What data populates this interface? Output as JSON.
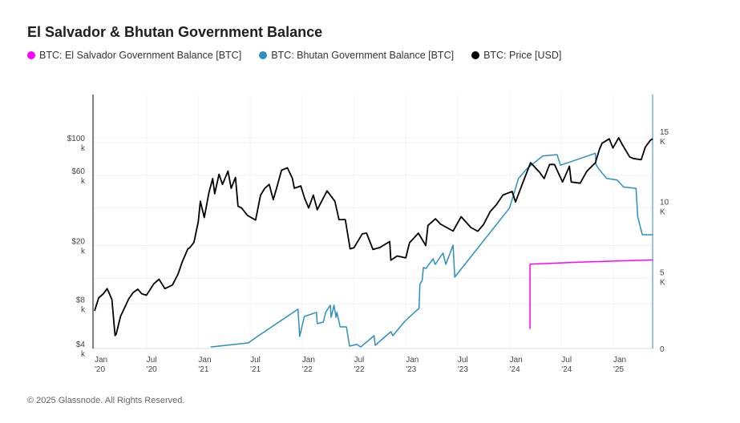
{
  "title": "El Salvador & Bhutan Government Balance",
  "footer": "© 2025 Glassnode. All Rights Reserved.",
  "chart_data": {
    "type": "line",
    "title": "El Salvador & Bhutan Government Balance",
    "legend_position": "top-left",
    "grid": true,
    "x_ticks": [
      {
        "date": "2020-01-01",
        "label": [
          "Jan",
          "'20"
        ]
      },
      {
        "date": "2020-07-01",
        "label": [
          "Jul",
          "'20"
        ]
      },
      {
        "date": "2021-01-01",
        "label": [
          "Jan",
          "'21"
        ]
      },
      {
        "date": "2021-07-01",
        "label": [
          "Jul",
          "'21"
        ]
      },
      {
        "date": "2022-01-01",
        "label": [
          "Jan",
          "'22"
        ]
      },
      {
        "date": "2022-07-01",
        "label": [
          "Jul",
          "'22"
        ]
      },
      {
        "date": "2023-01-01",
        "label": [
          "Jan",
          "'23"
        ]
      },
      {
        "date": "2023-07-01",
        "label": [
          "Jul",
          "'23"
        ]
      },
      {
        "date": "2024-01-01",
        "label": [
          "Jan",
          "'24"
        ]
      },
      {
        "date": "2024-07-01",
        "label": [
          "Jul",
          "'24"
        ]
      },
      {
        "date": "2025-01-01",
        "label": [
          "Jan",
          "'25"
        ]
      }
    ],
    "left_axis": {
      "scale": "log",
      "range": [
        4000,
        160000
      ],
      "ticks": [
        {
          "value": 4000,
          "label": [
            "$4",
            "k"
          ]
        },
        {
          "value": 8000,
          "label": [
            "$8",
            "k"
          ]
        },
        {
          "value": 20000,
          "label": [
            "$20",
            "k"
          ]
        },
        {
          "value": 60000,
          "label": [
            "$60",
            "k"
          ]
        },
        {
          "value": 100000,
          "label": [
            "$100",
            "k"
          ]
        }
      ]
    },
    "right_axis": {
      "scale": "linear",
      "range": [
        0,
        18000
      ],
      "ticks": [
        {
          "value": 0,
          "label": [
            "0"
          ]
        },
        {
          "value": 5000,
          "label": [
            "5",
            "K"
          ]
        },
        {
          "value": 10000,
          "label": [
            "10",
            "K"
          ]
        },
        {
          "value": 15000,
          "label": [
            "15",
            "K"
          ]
        }
      ]
    },
    "series": [
      {
        "name": "BTC: El Salvador Government Balance [BTC]",
        "color": "#ff00ff",
        "axis": "right",
        "points": [
          [
            "2024-03-12",
            1400
          ],
          [
            "2024-03-12",
            6000
          ],
          [
            "2024-09-01",
            6150
          ],
          [
            "2025-05-18",
            6300
          ]
        ]
      },
      {
        "name": "BTC: Bhutan Government Balance [BTC]",
        "color": "#2b8fc4",
        "axis": "right",
        "points": [
          [
            "2021-02-14",
            110
          ],
          [
            "2021-06-25",
            400
          ],
          [
            "2021-07-18",
            740
          ],
          [
            "2021-12-17",
            2800
          ],
          [
            "2021-12-23",
            860
          ],
          [
            "2022-01-09",
            2280
          ],
          [
            "2022-02-21",
            2570
          ],
          [
            "2022-02-24",
            1770
          ],
          [
            "2022-03-15",
            1880
          ],
          [
            "2022-03-23",
            2570
          ],
          [
            "2022-04-09",
            3080
          ],
          [
            "2022-04-12",
            2220
          ],
          [
            "2022-04-22",
            3080
          ],
          [
            "2022-04-29",
            2220
          ],
          [
            "2022-05-02",
            2570
          ],
          [
            "2022-05-13",
            1540
          ],
          [
            "2022-06-05",
            1540
          ],
          [
            "2022-06-16",
            170
          ],
          [
            "2022-07-11",
            290
          ],
          [
            "2022-07-25",
            110
          ],
          [
            "2022-09-11",
            910
          ],
          [
            "2022-09-15",
            230
          ],
          [
            "2022-11-09",
            1200
          ],
          [
            "2022-11-16",
            910
          ],
          [
            "2022-12-28",
            1940
          ],
          [
            "2023-01-31",
            2570
          ],
          [
            "2023-02-17",
            2850
          ],
          [
            "2023-02-20",
            4560
          ],
          [
            "2023-02-28",
            4850
          ],
          [
            "2023-03-02",
            5760
          ],
          [
            "2023-03-11",
            5700
          ],
          [
            "2023-04-06",
            6390
          ],
          [
            "2023-04-13",
            5990
          ],
          [
            "2023-05-10",
            6790
          ],
          [
            "2023-05-20",
            5990
          ],
          [
            "2023-06-15",
            7360
          ],
          [
            "2023-06-21",
            5080
          ],
          [
            "2023-12-31",
            10000
          ],
          [
            "2024-02-02",
            12100
          ],
          [
            "2024-03-01",
            12800
          ],
          [
            "2024-04-26",
            13700
          ],
          [
            "2024-06-16",
            13800
          ],
          [
            "2024-06-28",
            13050
          ],
          [
            "2024-07-20",
            13200
          ],
          [
            "2024-10-29",
            13900
          ],
          [
            "2024-11-01",
            13100
          ],
          [
            "2024-11-10",
            12800
          ],
          [
            "2024-12-08",
            12100
          ],
          [
            "2025-01-14",
            12000
          ],
          [
            "2025-02-06",
            11500
          ],
          [
            "2025-03-20",
            11400
          ],
          [
            "2025-03-26",
            9400
          ],
          [
            "2025-04-06",
            8550
          ],
          [
            "2025-04-12",
            8100
          ],
          [
            "2025-05-18",
            8100
          ]
        ]
      },
      {
        "name": "BTC: Price [USD]",
        "color": "#000000",
        "axis": "left",
        "points": [
          [
            "2020-01-01",
            7200
          ],
          [
            "2020-01-15",
            8800
          ],
          [
            "2020-02-01",
            9400
          ],
          [
            "2020-02-15",
            10200
          ],
          [
            "2020-03-01",
            8600
          ],
          [
            "2020-03-12",
            4900
          ],
          [
            "2020-03-16",
            5000
          ],
          [
            "2020-04-01",
            6600
          ],
          [
            "2020-04-30",
            8700
          ],
          [
            "2020-05-15",
            9600
          ],
          [
            "2020-06-01",
            10100
          ],
          [
            "2020-06-15",
            9400
          ],
          [
            "2020-07-01",
            9200
          ],
          [
            "2020-07-27",
            11000
          ],
          [
            "2020-08-15",
            11800
          ],
          [
            "2020-09-05",
            10200
          ],
          [
            "2020-10-01",
            10800
          ],
          [
            "2020-10-21",
            12800
          ],
          [
            "2020-11-05",
            15500
          ],
          [
            "2020-11-25",
            19000
          ],
          [
            "2020-12-01",
            19300
          ],
          [
            "2020-12-16",
            21000
          ],
          [
            "2020-12-31",
            29000
          ],
          [
            "2021-01-08",
            40000
          ],
          [
            "2021-01-22",
            31000
          ],
          [
            "2021-02-08",
            46000
          ],
          [
            "2021-02-21",
            57000
          ],
          [
            "2021-02-28",
            45000
          ],
          [
            "2021-03-13",
            61000
          ],
          [
            "2021-03-25",
            52000
          ],
          [
            "2021-04-14",
            64000
          ],
          [
            "2021-04-25",
            49000
          ],
          [
            "2021-05-10",
            58000
          ],
          [
            "2021-05-19",
            37000
          ],
          [
            "2021-06-01",
            36000
          ],
          [
            "2021-06-22",
            32000
          ],
          [
            "2021-07-20",
            29800
          ],
          [
            "2021-08-07",
            44000
          ],
          [
            "2021-08-22",
            49000
          ],
          [
            "2021-09-07",
            52000
          ],
          [
            "2021-09-21",
            41000
          ],
          [
            "2021-10-01",
            48000
          ],
          [
            "2021-10-20",
            65000
          ],
          [
            "2021-11-10",
            67500
          ],
          [
            "2021-11-28",
            57000
          ],
          [
            "2021-12-04",
            49000
          ],
          [
            "2021-12-27",
            50800
          ],
          [
            "2022-01-10",
            41800
          ],
          [
            "2022-01-24",
            36000
          ],
          [
            "2022-02-10",
            44000
          ],
          [
            "2022-02-24",
            35000
          ],
          [
            "2022-03-28",
            47000
          ],
          [
            "2022-04-25",
            40000
          ],
          [
            "2022-05-09",
            30000
          ],
          [
            "2022-06-01",
            30000
          ],
          [
            "2022-06-18",
            19000
          ],
          [
            "2022-07-01",
            19300
          ],
          [
            "2022-07-30",
            24000
          ],
          [
            "2022-08-15",
            24300
          ],
          [
            "2022-09-07",
            18800
          ],
          [
            "2022-10-01",
            19400
          ],
          [
            "2022-11-05",
            21300
          ],
          [
            "2022-11-09",
            15900
          ],
          [
            "2022-12-01",
            17000
          ],
          [
            "2022-12-31",
            16500
          ],
          [
            "2023-01-14",
            20900
          ],
          [
            "2023-02-15",
            24300
          ],
          [
            "2023-03-10",
            20000
          ],
          [
            "2023-03-18",
            27400
          ],
          [
            "2023-04-14",
            30400
          ],
          [
            "2023-05-01",
            28000
          ],
          [
            "2023-06-15",
            25100
          ],
          [
            "2023-07-13",
            31400
          ],
          [
            "2023-08-17",
            26500
          ],
          [
            "2023-09-11",
            25000
          ],
          [
            "2023-10-01",
            27900
          ],
          [
            "2023-10-24",
            34000
          ],
          [
            "2023-11-15",
            37800
          ],
          [
            "2023-12-08",
            44000
          ],
          [
            "2024-01-10",
            46600
          ],
          [
            "2024-01-22",
            39500
          ],
          [
            "2024-02-15",
            52000
          ],
          [
            "2024-03-14",
            73000
          ],
          [
            "2024-04-15",
            63000
          ],
          [
            "2024-05-01",
            57000
          ],
          [
            "2024-05-20",
            71000
          ],
          [
            "2024-06-07",
            71000
          ],
          [
            "2024-07-05",
            54000
          ],
          [
            "2024-07-29",
            69000
          ],
          [
            "2024-08-05",
            54000
          ],
          [
            "2024-09-06",
            53000
          ],
          [
            "2024-09-30",
            64000
          ],
          [
            "2024-10-29",
            73000
          ],
          [
            "2024-11-13",
            90000
          ],
          [
            "2024-11-22",
            99000
          ],
          [
            "2024-12-17",
            106000
          ],
          [
            "2024-12-30",
            92000
          ],
          [
            "2025-01-20",
            108000
          ],
          [
            "2025-02-02",
            97000
          ],
          [
            "2025-02-28",
            80000
          ],
          [
            "2025-03-10",
            78000
          ],
          [
            "2025-04-08",
            76500
          ],
          [
            "2025-04-22",
            93000
          ],
          [
            "2025-05-10",
            104000
          ],
          [
            "2025-05-18",
            106000
          ]
        ]
      }
    ]
  }
}
